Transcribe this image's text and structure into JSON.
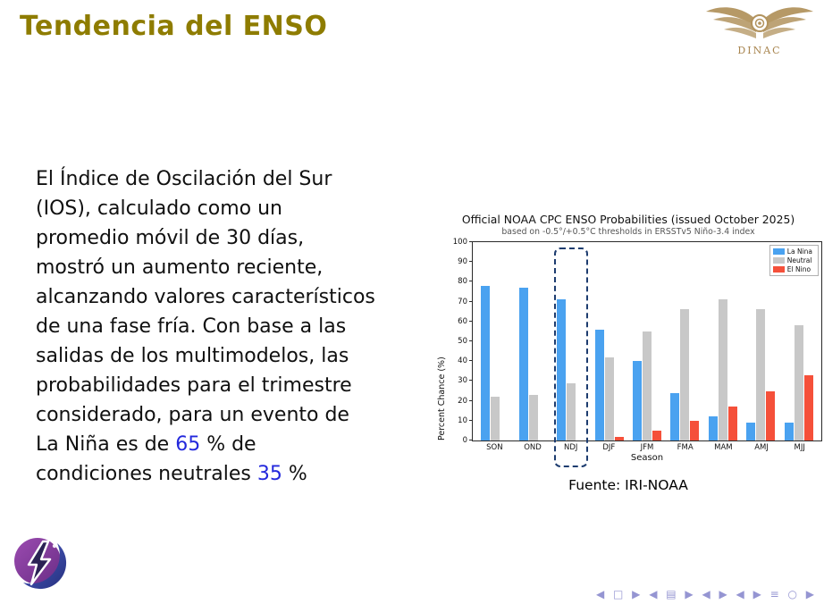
{
  "slide": {
    "title": "Tendencia del ENSO"
  },
  "header": {
    "logo_text": "DINAC"
  },
  "body": {
    "lines": [
      "El Índice de Oscilación del Sur",
      "(IOS), calculado como un",
      "promedio móvil de 30 días,",
      "mostró un aumento reciente,",
      "alcanzando valores característicos",
      "de una fase fría. Con base a las",
      "salidas de los multimodelos, las",
      "probabilidades para el trimestre",
      "considerado, para un evento de"
    ],
    "line_nina": {
      "pre": "La Niña es de ",
      "value": "65",
      "post": " % de"
    },
    "line_neutral": {
      "pre": "condiciones neutrales ",
      "value": "35",
      "post": " %"
    }
  },
  "chart": {
    "caption": "Fuente: IRI-NOAA"
  },
  "chart_data": {
    "type": "bar",
    "title": "Official NOAA CPC ENSO Probabilities (issued October 2025)",
    "subtitle": "based on -0.5°/+0.5°C thresholds in ERSSTv5 Niño-3.4 index",
    "xlabel": "Season",
    "ylabel": "Percent Chance (%)",
    "ylim": [
      0,
      100
    ],
    "ytick_step": 10,
    "grid": false,
    "legend_position": "upper right",
    "categories": [
      "SON",
      "OND",
      "NDJ",
      "DJF",
      "JFM",
      "FMA",
      "MAM",
      "AMJ",
      "MJJ"
    ],
    "series": [
      {
        "name": "La Nina",
        "color": "#4aa2f0",
        "values": [
          78,
          77,
          71,
          56,
          40,
          24,
          12,
          9,
          9
        ]
      },
      {
        "name": "Neutral",
        "color": "#c8c8c8",
        "values": [
          22,
          23,
          29,
          42,
          55,
          66,
          71,
          66,
          58
        ]
      },
      {
        "name": "El Nino",
        "color": "#f5503a",
        "values": [
          0,
          0,
          0,
          2,
          5,
          10,
          17,
          25,
          33
        ]
      }
    ],
    "highlight_category": "NDJ"
  },
  "footer": {
    "nav_symbols": "◀ □ ▶ ◀ ▤ ▶ ◀ ▶ ◀ ▶ ≡ ○ ▶"
  },
  "colors": {
    "title": "#8e7c00",
    "accent_number": "#2328dc",
    "highlight_box": "#1d3c6f",
    "la_nina": "#4aa2f0",
    "neutral": "#c8c8c8",
    "el_nino": "#f5503a",
    "logo_gold": "#b2935e",
    "nav_symbols": "#9595d2"
  }
}
